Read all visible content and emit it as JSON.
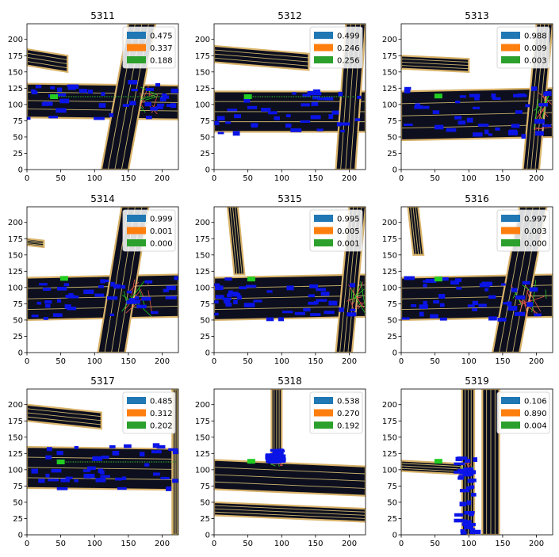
{
  "figure": {
    "legend_colors": [
      "#1f77b4",
      "#ff7f0e",
      "#2ca02c"
    ],
    "palette": {
      "road": "#0d0f1e",
      "road_edge": "#d9b36a",
      "lane_line": "#e8cf7a",
      "vehicle": "#0a14e6",
      "ego": "#22cc22",
      "trajectory": "#2ca02c",
      "crosswalk": "#e4564a"
    }
  },
  "chart_data": [
    {
      "type": "scatter",
      "title": "5311",
      "xlim": [
        0,
        224
      ],
      "ylim": [
        0,
        224
      ],
      "xticks": [
        "0",
        "50",
        "100",
        "150",
        "200"
      ],
      "yticks": [
        "0",
        "25",
        "50",
        "75",
        "100",
        "125",
        "150",
        "175",
        "200"
      ],
      "legend": [
        "0.475",
        "0.337",
        "0.188"
      ],
      "legend_position": "top-right",
      "grid": false
    },
    {
      "type": "scatter",
      "title": "5312",
      "xlim": [
        0,
        224
      ],
      "ylim": [
        0,
        224
      ],
      "xticks": [
        "0",
        "50",
        "100",
        "150",
        "200"
      ],
      "yticks": [
        "0",
        "25",
        "50",
        "75",
        "100",
        "125",
        "150",
        "175",
        "200"
      ],
      "legend": [
        "0.499",
        "0.246",
        "0.256"
      ],
      "legend_position": "top-right",
      "grid": false
    },
    {
      "type": "scatter",
      "title": "5313",
      "xlim": [
        0,
        224
      ],
      "ylim": [
        0,
        224
      ],
      "xticks": [
        "0",
        "50",
        "100",
        "150",
        "200"
      ],
      "yticks": [
        "0",
        "25",
        "50",
        "75",
        "100",
        "125",
        "150",
        "175",
        "200"
      ],
      "legend": [
        "0.988",
        "0.009",
        "0.003"
      ],
      "legend_position": "top-right",
      "grid": false
    },
    {
      "type": "scatter",
      "title": "5314",
      "xlim": [
        0,
        224
      ],
      "ylim": [
        0,
        224
      ],
      "xticks": [
        "0",
        "50",
        "100",
        "150",
        "200"
      ],
      "yticks": [
        "0",
        "25",
        "50",
        "75",
        "100",
        "125",
        "150",
        "175",
        "200"
      ],
      "legend": [
        "0.999",
        "0.001",
        "0.000"
      ],
      "legend_position": "top-right",
      "grid": false
    },
    {
      "type": "scatter",
      "title": "5315",
      "xlim": [
        0,
        224
      ],
      "ylim": [
        0,
        224
      ],
      "xticks": [
        "0",
        "50",
        "100",
        "150",
        "200"
      ],
      "yticks": [
        "0",
        "25",
        "50",
        "75",
        "100",
        "125",
        "150",
        "175",
        "200"
      ],
      "legend": [
        "0.995",
        "0.005",
        "0.001"
      ],
      "legend_position": "top-right",
      "grid": false
    },
    {
      "type": "scatter",
      "title": "5316",
      "xlim": [
        0,
        224
      ],
      "ylim": [
        0,
        224
      ],
      "xticks": [
        "0",
        "50",
        "100",
        "150",
        "200"
      ],
      "yticks": [
        "0",
        "25",
        "50",
        "75",
        "100",
        "125",
        "150",
        "175",
        "200"
      ],
      "legend": [
        "0.997",
        "0.003",
        "0.000"
      ],
      "legend_position": "top-right",
      "grid": false
    },
    {
      "type": "scatter",
      "title": "5317",
      "xlim": [
        0,
        224
      ],
      "ylim": [
        0,
        224
      ],
      "xticks": [
        "0",
        "50",
        "100",
        "150",
        "200"
      ],
      "yticks": [
        "0",
        "25",
        "50",
        "75",
        "100",
        "125",
        "150",
        "175",
        "200"
      ],
      "legend": [
        "0.485",
        "0.312",
        "0.202"
      ],
      "legend_position": "top-right",
      "grid": false
    },
    {
      "type": "scatter",
      "title": "5318",
      "xlim": [
        0,
        224
      ],
      "ylim": [
        0,
        224
      ],
      "xticks": [
        "0",
        "50",
        "100",
        "150",
        "200"
      ],
      "yticks": [
        "0",
        "25",
        "50",
        "75",
        "100",
        "125",
        "150",
        "175",
        "200"
      ],
      "legend": [
        "0.538",
        "0.270",
        "0.192"
      ],
      "legend_position": "top-right",
      "grid": false
    },
    {
      "type": "scatter",
      "title": "5319",
      "xlim": [
        0,
        224
      ],
      "ylim": [
        0,
        224
      ],
      "xticks": [
        "0",
        "50",
        "100",
        "150",
        "200"
      ],
      "yticks": [
        "0",
        "25",
        "50",
        "75",
        "100",
        "125",
        "150",
        "175",
        "200"
      ],
      "legend": [
        "0.106",
        "0.890",
        "0.004"
      ],
      "legend_position": "top-right",
      "grid": false
    }
  ]
}
